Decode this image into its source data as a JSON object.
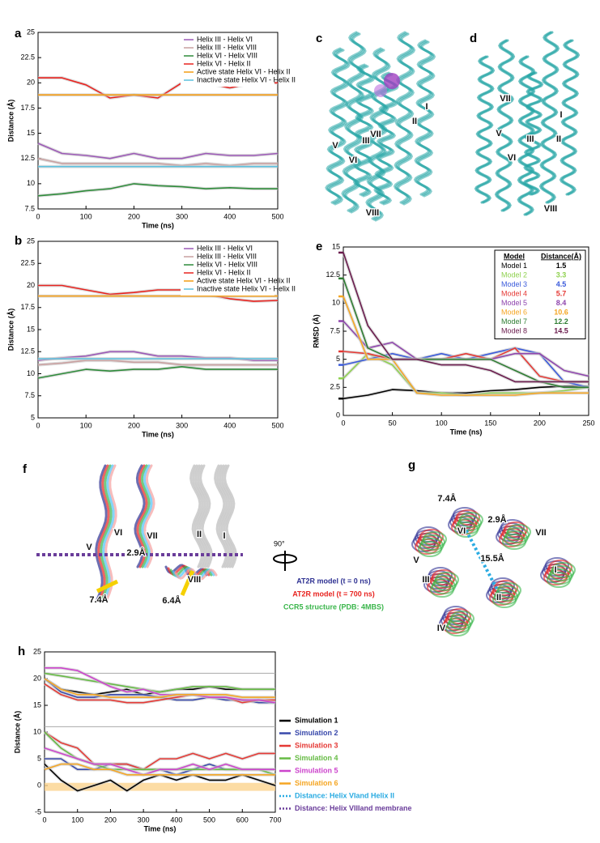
{
  "chart_data": [
    {
      "type": "line",
      "panel": "a",
      "xlabel": "Time (ns)",
      "ylabel": "Distance (Å)",
      "xlim": [
        0,
        500
      ],
      "ylim": [
        7.5,
        25
      ],
      "xticks": [
        0,
        100,
        200,
        300,
        400,
        500
      ],
      "yticks": [
        7.5,
        10,
        12.5,
        15,
        17.5,
        20,
        22.5,
        25
      ],
      "legend": "top-right",
      "x": [
        0,
        50,
        100,
        150,
        200,
        250,
        300,
        350,
        400,
        450,
        500
      ],
      "series": [
        {
          "name": "Helix III - Helix VI",
          "color": "#9b59b6",
          "values": [
            14,
            13,
            12.8,
            12.5,
            13,
            12.5,
            12.5,
            13,
            12.8,
            12.8,
            13
          ]
        },
        {
          "name": "Helix III - Helix VIII",
          "color": "#c9a0a0",
          "values": [
            12.5,
            12,
            12,
            12,
            12,
            12,
            11.8,
            12,
            11.8,
            12,
            12
          ]
        },
        {
          "name": "Helix VI - Helix VIII",
          "color": "#2e8b3a",
          "values": [
            8.8,
            9,
            9.3,
            9.5,
            10,
            9.8,
            9.7,
            9.5,
            9.6,
            9.5,
            9.5
          ]
        },
        {
          "name": "Helix VI - Helix II",
          "color": "#e8231f",
          "values": [
            20.5,
            20.5,
            19.8,
            18.5,
            18.8,
            18.5,
            20,
            20,
            19.5,
            20,
            20
          ]
        },
        {
          "name": "Active state Helix VI - Helix II",
          "color": "#f39c12",
          "values": [
            18.8,
            18.8,
            18.8,
            18.8,
            18.8,
            18.8,
            18.8,
            18.8,
            18.8,
            18.8,
            18.8
          ]
        },
        {
          "name": "Inactive state Helix VI - Helix II",
          "color": "#5bc0de",
          "values": [
            11.7,
            11.7,
            11.7,
            11.7,
            11.7,
            11.7,
            11.7,
            11.7,
            11.7,
            11.7,
            11.7
          ]
        }
      ]
    },
    {
      "type": "line",
      "panel": "b",
      "xlabel": "Time (ns)",
      "ylabel": "Distance (Å)",
      "xlim": [
        0,
        500
      ],
      "ylim": [
        5,
        25
      ],
      "xticks": [
        0,
        100,
        200,
        300,
        400,
        500
      ],
      "yticks": [
        5,
        7.5,
        10,
        12.5,
        15,
        17.5,
        20,
        22.5,
        25
      ],
      "legend": "top-right",
      "x": [
        0,
        50,
        100,
        150,
        200,
        250,
        300,
        350,
        400,
        450,
        500
      ],
      "series": [
        {
          "name": "Helix III - Helix VI",
          "color": "#9b59b6",
          "values": [
            11.5,
            11.8,
            12,
            12.5,
            12.5,
            12,
            12,
            11.8,
            11.8,
            11.5,
            11.5
          ]
        },
        {
          "name": "Helix III - Helix VIII",
          "color": "#c9a0a0",
          "values": [
            11,
            11.2,
            11.5,
            11.5,
            11.3,
            11.3,
            11,
            11,
            11,
            11,
            11
          ]
        },
        {
          "name": "Helix VI - Helix VIII",
          "color": "#2e8b3a",
          "values": [
            9.5,
            10,
            10.5,
            10.3,
            10.5,
            10.5,
            10.8,
            10.5,
            10.5,
            10.5,
            10.5
          ]
        },
        {
          "name": "Helix VI - Helix II",
          "color": "#e8231f",
          "values": [
            20,
            20,
            19.5,
            19,
            19.2,
            19.5,
            19.5,
            19,
            18.5,
            18.2,
            18.3
          ]
        },
        {
          "name": "Active state Helix VI - Helix II",
          "color": "#f39c12",
          "values": [
            18.8,
            18.8,
            18.8,
            18.8,
            18.8,
            18.8,
            18.8,
            18.8,
            18.8,
            18.8,
            18.8
          ]
        },
        {
          "name": "Inactive state Helix VI - Helix II",
          "color": "#5bc0de",
          "values": [
            11.7,
            11.7,
            11.7,
            11.7,
            11.7,
            11.7,
            11.7,
            11.7,
            11.7,
            11.7,
            11.7
          ]
        }
      ]
    },
    {
      "type": "line",
      "panel": "e",
      "xlabel": "Time (ns)",
      "ylabel": "RMSD (Å)",
      "xlim": [
        0,
        250
      ],
      "ylim": [
        0,
        15
      ],
      "xticks": [
        0,
        50,
        100,
        150,
        200,
        250
      ],
      "yticks": [
        0,
        2.5,
        5,
        7.5,
        10,
        12.5,
        15
      ],
      "table_headers": [
        "Model",
        "Distance(Å)"
      ],
      "x": [
        0,
        25,
        50,
        75,
        100,
        125,
        150,
        175,
        200,
        225,
        250
      ],
      "series": [
        {
          "name": "Model 1",
          "color": "#000000",
          "distance": 1.5,
          "values": [
            1.5,
            1.8,
            2.3,
            2.2,
            2,
            2,
            2.2,
            2.3,
            2.5,
            2.6,
            2.6
          ]
        },
        {
          "name": "Model 2",
          "color": "#8fd14f",
          "distance": 3.3,
          "values": [
            3.3,
            5.5,
            4.5,
            2,
            2,
            1.8,
            2,
            2,
            2,
            2.2,
            2.5
          ]
        },
        {
          "name": "Model 3",
          "color": "#3b5bdb",
          "distance": 4.5,
          "values": [
            4.5,
            5,
            5.5,
            5,
            5.5,
            5,
            5.5,
            6,
            5.5,
            3,
            2.5
          ]
        },
        {
          "name": "Model 4",
          "color": "#e53935",
          "distance": 5.7,
          "values": [
            5.7,
            5.5,
            5,
            5,
            5,
            5.5,
            5,
            6,
            3.5,
            3,
            3
          ]
        },
        {
          "name": "Model 5",
          "color": "#8e44ad",
          "distance": 8.4,
          "values": [
            8.4,
            6,
            6.5,
            5,
            5,
            5,
            5,
            5.5,
            5.5,
            4,
            3.5
          ]
        },
        {
          "name": "Model 6",
          "color": "#f5a623",
          "distance": 10.6,
          "values": [
            10.6,
            5,
            5,
            2,
            1.8,
            1.8,
            1.8,
            1.8,
            2,
            2,
            2
          ]
        },
        {
          "name": "Model 7",
          "color": "#2e7d32",
          "distance": 12.2,
          "values": [
            12.2,
            6,
            5,
            5,
            5,
            5,
            5,
            4,
            3,
            2.5,
            2.5
          ]
        },
        {
          "name": "Model 8",
          "color": "#6a1b4d",
          "distance": 14.5,
          "values": [
            14.5,
            8,
            5,
            5,
            4.5,
            4.5,
            4,
            3,
            3,
            3,
            3
          ]
        }
      ]
    },
    {
      "type": "line",
      "panel": "h",
      "xlabel": "Time (ns)",
      "ylabel": "Distance (Å)",
      "xlim": [
        0,
        700
      ],
      "ylim": [
        -5,
        25
      ],
      "xticks": [
        0,
        100,
        200,
        300,
        400,
        500,
        600,
        700
      ],
      "yticks": [
        -5,
        0,
        5,
        10,
        15,
        20,
        25
      ],
      "reference_lines": [
        21,
        11
      ],
      "band": [
        -1,
        0.5
      ],
      "band_color": "#fbd38d",
      "x": [
        0,
        50,
        100,
        150,
        200,
        250,
        300,
        350,
        400,
        450,
        500,
        550,
        600,
        650,
        700
      ],
      "series": [
        {
          "name": "Simulation 1",
          "color": "#000000",
          "values": [
            20,
            18,
            17.5,
            17,
            17.5,
            18,
            17,
            17.5,
            18,
            18,
            18.5,
            18,
            18,
            18,
            18
          ],
          "values_membrane": [
            4,
            1,
            -1,
            0,
            1,
            -1,
            1,
            2,
            1,
            2,
            1,
            1,
            2,
            1,
            0
          ]
        },
        {
          "name": "Simulation 2",
          "color": "#3949ab",
          "values": [
            20,
            17.5,
            16.5,
            16.5,
            17,
            17,
            17,
            16.5,
            16,
            16,
            16.5,
            16,
            16,
            15.5,
            15.5
          ],
          "values_membrane": [
            5,
            5,
            3,
            3,
            4,
            4,
            3,
            3,
            2,
            3,
            4,
            3,
            3,
            3,
            3
          ]
        },
        {
          "name": "Simulation 3",
          "color": "#e53935",
          "values": [
            19,
            17,
            16,
            16,
            16,
            15.5,
            15.5,
            16,
            16.5,
            17,
            16.5,
            16.5,
            15.5,
            16,
            16
          ],
          "values_membrane": [
            10,
            8,
            7,
            4,
            4,
            4,
            3,
            5,
            5,
            6,
            5,
            6,
            5,
            6,
            6
          ]
        },
        {
          "name": "Simulation 4",
          "color": "#66bb44",
          "values": [
            21,
            20.5,
            20,
            19.5,
            19,
            18.5,
            18,
            17.5,
            18,
            18.5,
            18.5,
            18.5,
            18,
            18,
            18
          ],
          "values_membrane": [
            10,
            7,
            5,
            4,
            3,
            3,
            3,
            3,
            3,
            3,
            3,
            3,
            3,
            3,
            2
          ]
        },
        {
          "name": "Simulation 5",
          "color": "#cc44cc",
          "values": [
            22,
            22,
            21.5,
            20,
            18.5,
            17.5,
            18,
            17,
            17,
            17,
            16.5,
            16.5,
            16,
            16,
            15.5
          ],
          "values_membrane": [
            7,
            6,
            5,
            4,
            4,
            3,
            2,
            3,
            3,
            4,
            3,
            4,
            3,
            3,
            3
          ]
        },
        {
          "name": "Simulation 6",
          "color": "#f5a623",
          "values": [
            20,
            18,
            17,
            17,
            16.5,
            16.5,
            16.5,
            16.5,
            17,
            17,
            17,
            17,
            16.5,
            16.5,
            16.5
          ],
          "values_membrane": [
            3,
            4,
            4,
            3,
            3,
            2,
            2,
            2,
            2,
            2,
            2,
            2,
            2,
            2,
            2
          ]
        }
      ],
      "legend_extra": [
        {
          "label": "Distance: Helix VIand Helix II",
          "color": "#29abe2"
        },
        {
          "label": "Distance: Helix VIIIand membrane",
          "color": "#6a3d9a"
        }
      ]
    }
  ],
  "panels": {
    "c": {
      "letter": "c",
      "labels": [
        "I",
        "VII",
        "II",
        "III",
        "V",
        "VI",
        "VIII"
      ]
    },
    "d": {
      "letter": "d",
      "labels": [
        "VII",
        "I",
        "V",
        "III",
        "II",
        "VI",
        "VIII"
      ]
    },
    "f": {
      "letter": "f",
      "labels": [
        "VI",
        "VII",
        "II",
        "I",
        "V",
        "2.9Å",
        "VIII",
        "7.4Å",
        "6.4Å"
      ]
    },
    "g": {
      "letter": "g",
      "labels": [
        "7.4Å",
        "VI",
        "2.9Å",
        "VII",
        "V",
        "15.5Å",
        "III",
        "II",
        "I",
        "IV"
      ]
    },
    "rotation": "90°",
    "legend": [
      {
        "label": "AT2R model (t = 0 ns)",
        "color": "#2e3192"
      },
      {
        "label": "AT2R model (t = 700 ns)",
        "color": "#e8231f"
      },
      {
        "label": "CCR5 structure (PDB: 4MBS)",
        "color": "#39b54a"
      }
    ]
  }
}
